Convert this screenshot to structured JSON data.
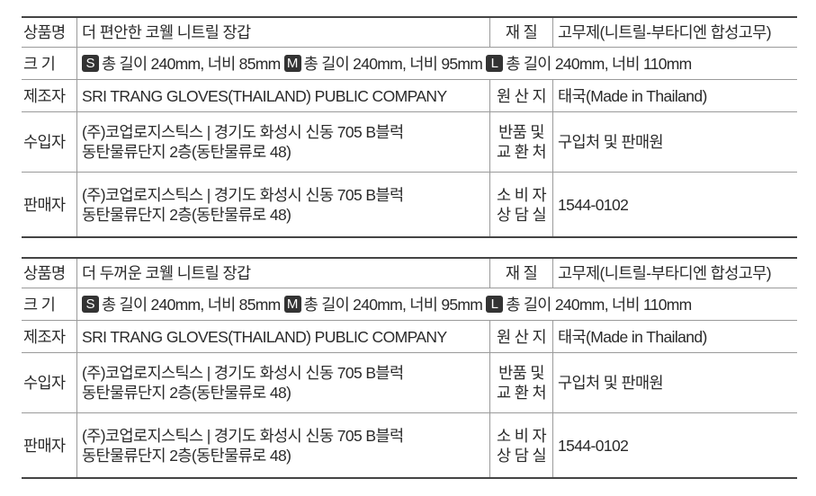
{
  "tables": [
    {
      "product_label": "상품명",
      "product": "더 편안한 코웰 니트릴 장갑",
      "material_label": "재 질",
      "material": "고무제(니트릴-부타디엔 합성고무)",
      "size_label": "크 기",
      "sizes": [
        {
          "badge": "S",
          "text": "총 길이 240mm, 너비 85mm"
        },
        {
          "badge": "M",
          "text": "총 길이 240mm, 너비 95mm"
        },
        {
          "badge": "L",
          "text": "총 길이 240mm, 너비 110mm"
        }
      ],
      "maker_label": "제조자",
      "maker": "SRI TRANG GLOVES(THAILAND) PUBLIC COMPANY",
      "origin_label": "원 산 지",
      "origin": "태국(Made in Thailand)",
      "importer_label": "수입자",
      "importer_line1": "(주)코업로지스틱스 | 경기도 화성시 신동 705 B블럭",
      "importer_line2": "동탄물류단지 2층(동탄물류로 48)",
      "return_label_1": "반품 및",
      "return_label_2": "교 환 처",
      "return": "구입처 및 판매원",
      "seller_label": "판매자",
      "seller_line1": "(주)코업로지스틱스 | 경기도 화성시 신동 705 B블럭",
      "seller_line2": "동탄물류단지 2층(동탄물류로 48)",
      "consult_label_1": "소 비 자",
      "consult_label_2": "상 담 실",
      "consult": "1544-0102"
    },
    {
      "product_label": "상품명",
      "product": "더 두꺼운 코웰 니트릴 장갑",
      "material_label": "재 질",
      "material": "고무제(니트릴-부타디엔 합성고무)",
      "size_label": "크 기",
      "sizes": [
        {
          "badge": "S",
          "text": "총 길이 240mm, 너비 85mm"
        },
        {
          "badge": "M",
          "text": "총 길이 240mm, 너비 95mm"
        },
        {
          "badge": "L",
          "text": "총 길이 240mm, 너비 110mm"
        }
      ],
      "maker_label": "제조자",
      "maker": "SRI TRANG GLOVES(THAILAND) PUBLIC COMPANY",
      "origin_label": "원 산 지",
      "origin": "태국(Made in Thailand)",
      "importer_label": "수입자",
      "importer_line1": "(주)코업로지스틱스 | 경기도 화성시 신동 705 B블럭",
      "importer_line2": "동탄물류단지 2층(동탄물류로 48)",
      "return_label_1": "반품 및",
      "return_label_2": "교 환 처",
      "return": "구입처 및 판매원",
      "seller_label": "판매자",
      "seller_line1": "(주)코업로지스틱스 | 경기도 화성시 신동 705 B블럭",
      "seller_line2": "동탄물류단지 2층(동탄물류로 48)",
      "consult_label_1": "소 비 자",
      "consult_label_2": "상 담 실",
      "consult": "1544-0102"
    }
  ]
}
